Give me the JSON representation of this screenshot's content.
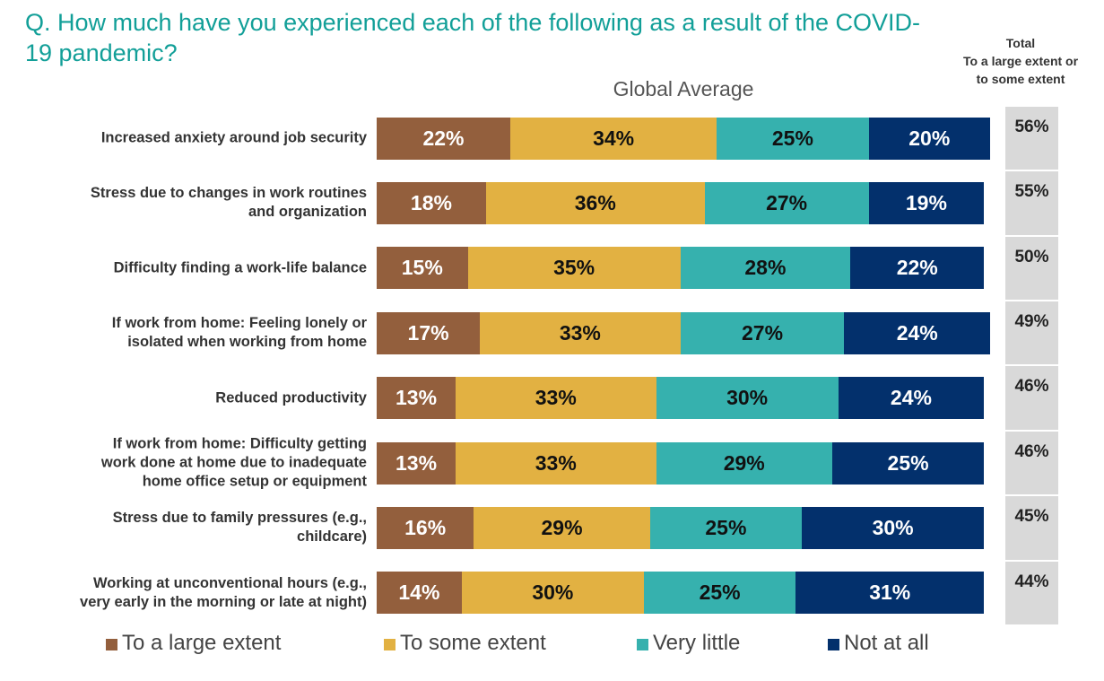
{
  "chart_data": {
    "type": "bar",
    "orientation": "horizontal",
    "stacked": true,
    "title": "Q. How much have you experienced each of the following as a result of the COVID-19 pandemic?",
    "subtitle": "Global Average",
    "categories": [
      "Increased anxiety around job security",
      "Stress due to changes in work routines\nand organization",
      "Difficulty finding a work-life balance",
      "If work from home: Feeling lonely or\nisolated when working from home",
      "Reduced productivity",
      "If work from home: Difficulty getting\nwork done at home due to inadequate\nhome office setup or equipment",
      "Stress due to family pressures (e.g.,\nchildcare)",
      "Working at unconventional hours (e.g.,\nvery early in the morning or late at night)"
    ],
    "xlim": [
      0,
      101
    ],
    "series": [
      {
        "name": "To a large extent",
        "color": "#935f3d",
        "label_color": "#ffffff",
        "values": [
          22,
          18,
          15,
          17,
          13,
          13,
          16,
          14
        ],
        "value_labels": [
          "22%",
          "18%",
          "15%",
          "17%",
          "13%",
          "13%",
          "16%",
          "14%"
        ]
      },
      {
        "name": "To some extent",
        "color": "#e2b142",
        "label_color": "#111111",
        "values": [
          34,
          36,
          35,
          33,
          33,
          33,
          29,
          30
        ],
        "value_labels": [
          "34%",
          "36%",
          "35%",
          "33%",
          "33%",
          "33%",
          "29%",
          "30%"
        ]
      },
      {
        "name": "Very little",
        "color": "#36b1ae",
        "label_color": "#111111",
        "values": [
          25,
          27,
          28,
          27,
          30,
          29,
          25,
          25
        ],
        "value_labels": [
          "25%",
          "27%",
          "28%",
          "27%",
          "30%",
          "29%",
          "25%",
          "25%"
        ]
      },
      {
        "name": "Not at all",
        "color": "#03306c",
        "label_color": "#ffffff",
        "values": [
          20,
          19,
          22,
          24,
          24,
          25,
          30,
          31
        ],
        "value_labels": [
          "20%",
          "19%",
          "22%",
          "24%",
          "24%",
          "25%",
          "30%",
          "31%"
        ]
      }
    ],
    "totals": {
      "title": "Total\nTo a large extent or\nto some extent",
      "values": [
        56,
        55,
        50,
        49,
        46,
        46,
        45,
        44
      ],
      "value_labels": [
        "56%",
        "55%",
        "50%",
        "49%",
        "46%",
        "46%",
        "45%",
        "44%"
      ]
    }
  }
}
